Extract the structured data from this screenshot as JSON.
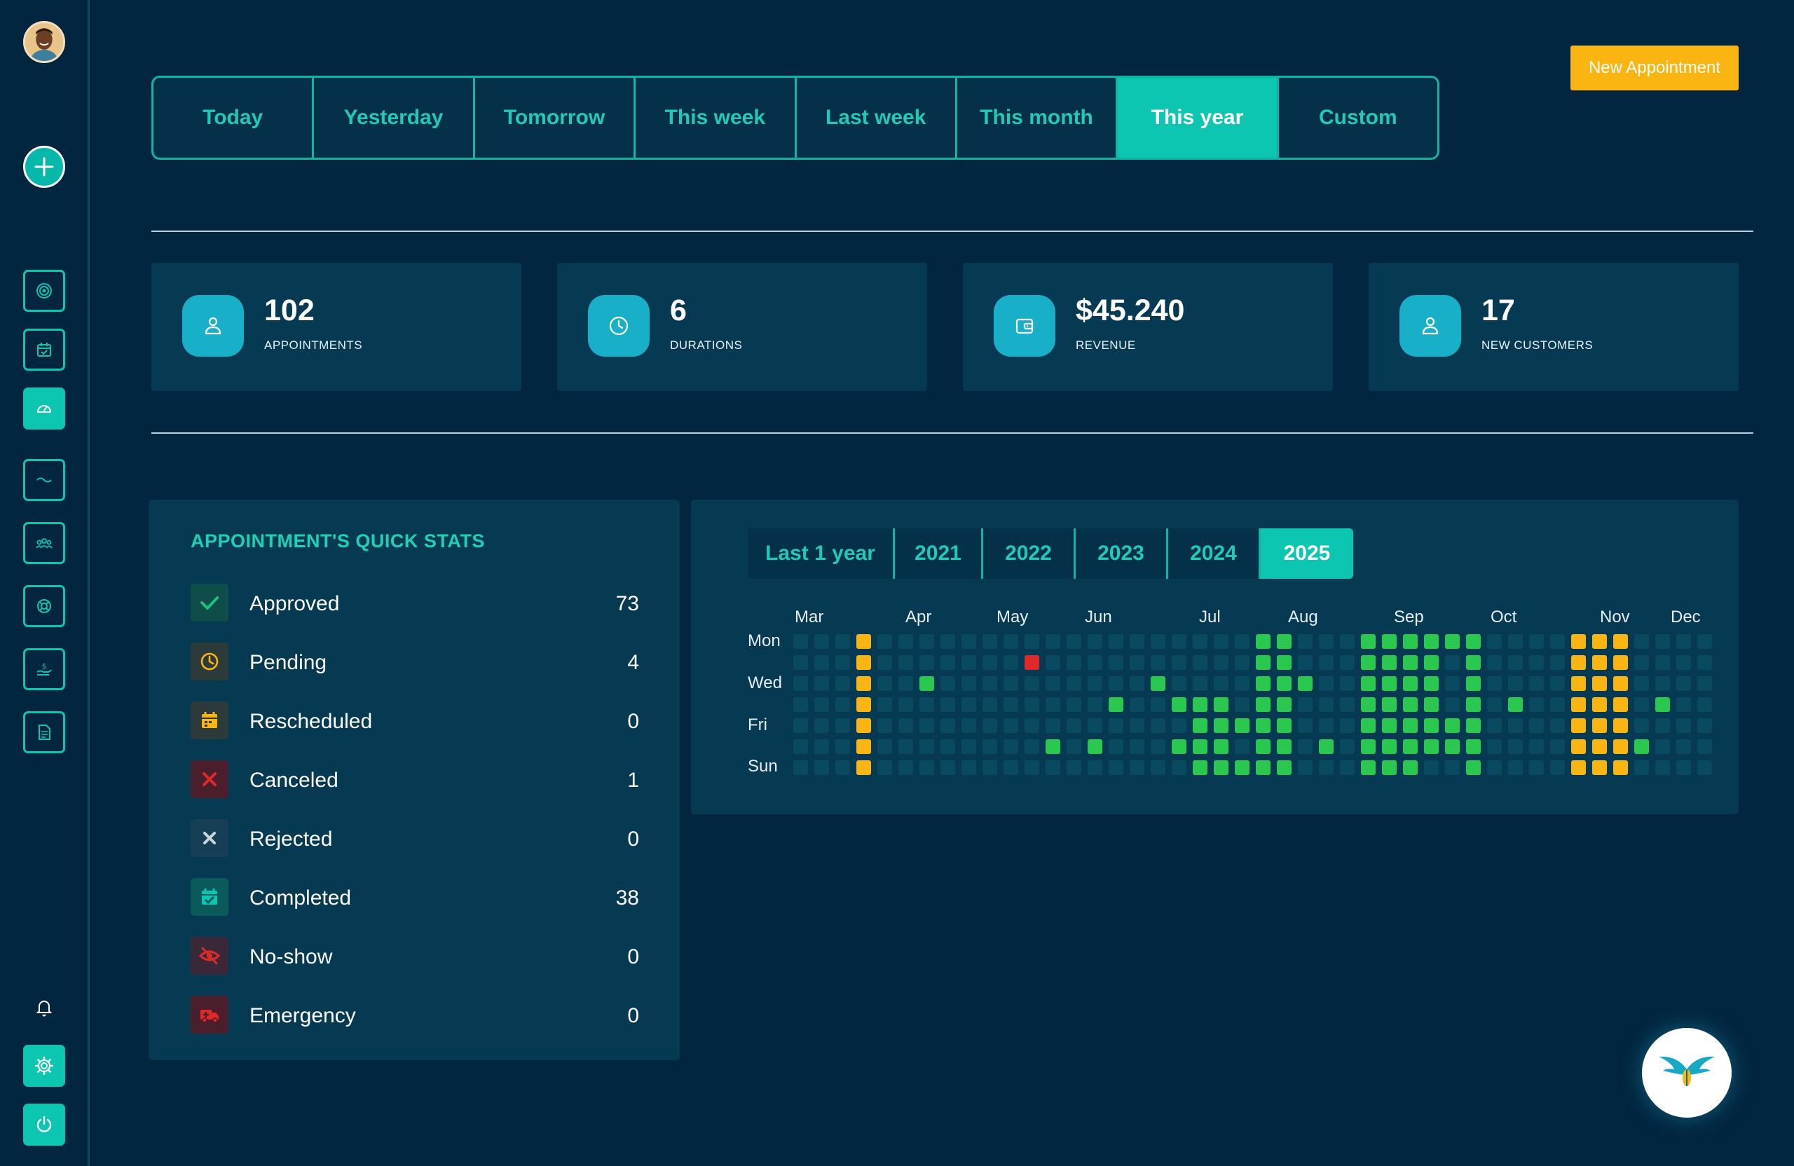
{
  "sidebar": {
    "nav_icons": [
      "target-icon",
      "calendar-icon",
      "dashboard-icon",
      "wave-icon",
      "users-icon",
      "support-icon",
      "payment-icon",
      "document-icon"
    ],
    "active": "dashboard-icon"
  },
  "header": {
    "tabs": [
      "Today",
      "Yesterday",
      "Tomorrow",
      "This week",
      "Last week",
      "This month",
      "This year",
      "Custom"
    ],
    "active_tab": "This year",
    "new_appointment_label": "New Appointment"
  },
  "kpis": [
    {
      "value": "102",
      "label": "APPOINTMENTS",
      "icon": "user-icon"
    },
    {
      "value": "6",
      "label": "DURATIONS",
      "icon": "clock-icon"
    },
    {
      "value": "$45.240",
      "label": "REVENUE",
      "icon": "wallet-icon"
    },
    {
      "value": "17",
      "label": "NEW CUSTOMERS",
      "icon": "user-icon"
    }
  ],
  "quick_stats": {
    "title": "APPOINTMENT'S QUICK STATS",
    "items": [
      {
        "label": "Approved",
        "value": "73",
        "icon": "check-icon",
        "color": "#1fc07a"
      },
      {
        "label": "Pending",
        "value": "4",
        "icon": "clock-icon",
        "color": "#fbb512"
      },
      {
        "label": "Rescheduled",
        "value": "0",
        "icon": "calendar-icon",
        "color": "#fbb512"
      },
      {
        "label": "Canceled",
        "value": "1",
        "icon": "x-icon",
        "color": "#e02a2a"
      },
      {
        "label": "Rejected",
        "value": "0",
        "icon": "x-icon",
        "color": "#c9d6de"
      },
      {
        "label": "Completed",
        "value": "38",
        "icon": "calendar-check-icon",
        "color": "#0cc6b2"
      },
      {
        "label": "No-show",
        "value": "0",
        "icon": "eye-slash-icon",
        "color": "#e02a2a"
      },
      {
        "label": "Emergency",
        "value": "0",
        "icon": "ambulance-icon",
        "color": "#e02a2a"
      }
    ]
  },
  "heatmap": {
    "year_tabs": [
      "Last 1 year",
      "2021",
      "2022",
      "2023",
      "2024",
      "2025"
    ],
    "active_year": "2025",
    "months": [
      "Mar",
      "Apr",
      "May",
      "Jun",
      "Jul",
      "Aug",
      "Sep",
      "Oct",
      "Nov",
      "Dec"
    ],
    "day_labels": [
      "Mon",
      "Wed",
      "Fri",
      "Sun"
    ],
    "colors": {
      "approved": "#2ac84e",
      "pending": "#fbb512",
      "canceled": "#e02a2a",
      "empty": "#0a4a60"
    }
  }
}
